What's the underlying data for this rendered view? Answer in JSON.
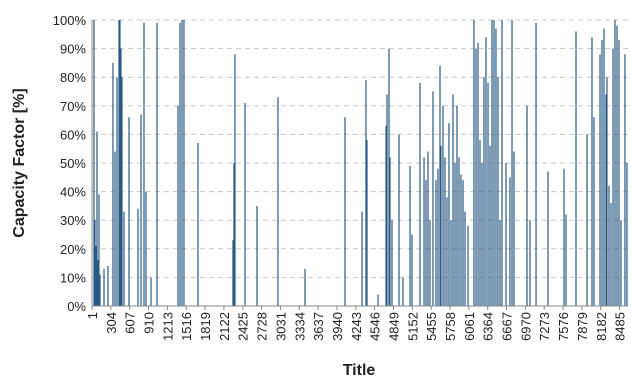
{
  "chart_data": {
    "type": "bar",
    "x_label": "Title",
    "y_label": "Capacity Factor [%]",
    "color": "#2a5a85",
    "grid": true,
    "xlim": [
      1,
      8620
    ],
    "xticks": [
      1,
      304,
      607,
      910,
      1213,
      1516,
      1819,
      2122,
      2425,
      2728,
      3031,
      3334,
      3637,
      3940,
      4243,
      4546,
      4849,
      5152,
      5455,
      5758,
      6061,
      6364,
      6667,
      6970,
      7273,
      7576,
      7879,
      8182,
      8485
    ],
    "ylim": [
      0,
      100
    ],
    "yticks": [
      {
        "value": 0,
        "label": "0%"
      },
      {
        "value": 10,
        "label": "10%"
      },
      {
        "value": 20,
        "label": "20%"
      },
      {
        "value": 30,
        "label": "30%"
      },
      {
        "value": 40,
        "label": "40%"
      },
      {
        "value": 50,
        "label": "50%"
      },
      {
        "value": 60,
        "label": "60%"
      },
      {
        "value": 70,
        "label": "70%"
      },
      {
        "value": 80,
        "label": "80%"
      },
      {
        "value": 90,
        "label": "90%"
      },
      {
        "value": 100,
        "label": "100%"
      }
    ],
    "x": [
      33,
      49,
      65,
      81,
      97,
      113,
      130,
      194,
      258,
      338,
      371,
      403,
      435,
      451,
      467,
      483,
      515,
      596,
      741,
      789,
      837,
      869,
      950,
      1046,
      1384,
      1416,
      1448,
      1480,
      1705,
      2268,
      2284,
      2300,
      2461,
      2654,
      2992,
      3426,
      4069,
      4343,
      4407,
      4423,
      4600,
      4729,
      4745,
      4777,
      4793,
      4825,
      4938,
      5002,
      5115,
      5147,
      5275,
      5340,
      5372,
      5404,
      5436,
      5484,
      5533,
      5565,
      5597,
      5613,
      5645,
      5677,
      5709,
      5741,
      5774,
      5806,
      5838,
      5870,
      5902,
      5934,
      5967,
      5999,
      6047,
      6143,
      6176,
      6208,
      6240,
      6272,
      6304,
      6336,
      6369,
      6401,
      6433,
      6465,
      6497,
      6529,
      6562,
      6594,
      6658,
      6722,
      6755,
      6787,
      6996,
      7044,
      7141,
      7334,
      7591,
      7623,
      7784,
      7961,
      8041,
      8073,
      8170,
      8202,
      8234,
      8266,
      8282,
      8314,
      8346,
      8379,
      8411,
      8443,
      8475,
      8507,
      8571,
      8603
    ],
    "values": [
      100,
      30,
      21,
      61,
      16,
      39,
      11,
      13,
      14,
      85,
      54,
      80,
      100,
      100,
      90,
      80,
      33,
      66,
      34,
      67,
      99,
      40,
      10,
      99,
      70,
      99,
      100,
      100,
      57,
      23,
      50,
      88,
      71,
      35,
      73,
      13,
      66,
      33,
      79,
      58,
      4,
      63,
      74,
      90,
      52,
      30,
      60,
      10,
      49,
      25,
      78,
      52,
      44,
      54,
      30,
      75,
      44,
      48,
      84,
      56,
      70,
      52,
      38,
      64,
      30,
      74,
      50,
      70,
      52,
      46,
      44,
      33,
      28,
      100,
      90,
      92,
      58,
      50,
      80,
      94,
      78,
      56,
      100,
      100,
      97,
      80,
      30,
      100,
      50,
      45,
      100,
      54,
      70,
      30,
      99,
      47,
      48,
      32,
      96,
      60,
      94,
      66,
      88,
      93,
      97,
      74,
      80,
      42,
      36,
      90,
      100,
      98,
      93,
      30,
      88,
      50
    ]
  }
}
